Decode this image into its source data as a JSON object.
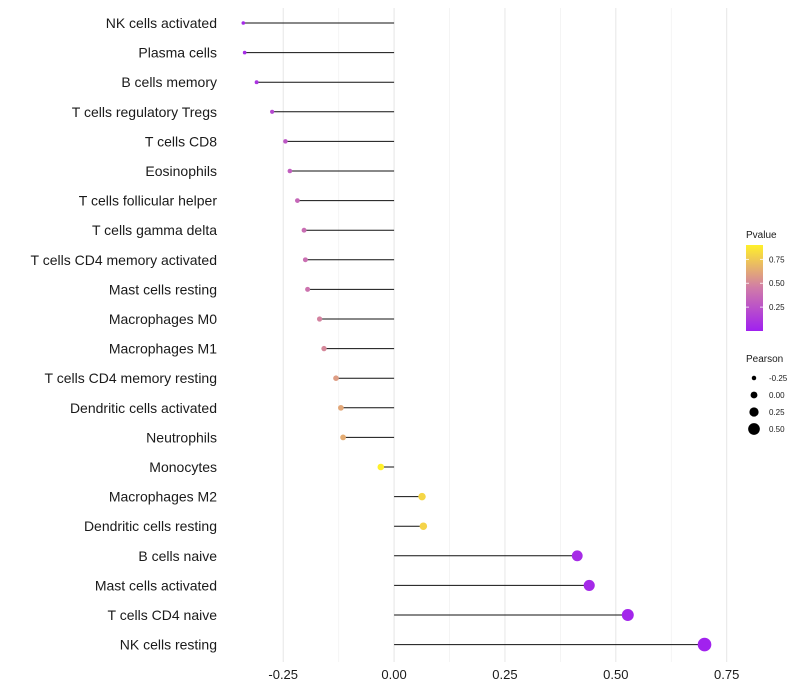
{
  "chart_data": {
    "type": "lollipop",
    "title": "",
    "xlabel": "",
    "ylabel": "",
    "xlim": [
      -0.37,
      0.78
    ],
    "x_ticks": [
      -0.25,
      0.0,
      0.25,
      0.5,
      0.75
    ],
    "x_tick_labels": [
      "-0.25",
      "0.00",
      "0.25",
      "0.50",
      "0.75"
    ],
    "grid": true,
    "points": [
      {
        "category": "NK cells activated",
        "pearson": -0.34,
        "pvalue": 0.05
      },
      {
        "category": "Plasma cells",
        "pearson": -0.337,
        "pvalue": 0.06
      },
      {
        "category": "B cells memory",
        "pearson": -0.31,
        "pvalue": 0.1
      },
      {
        "category": "T cells regulatory  Tregs ",
        "pearson": -0.275,
        "pvalue": 0.2
      },
      {
        "category": "T cells CD8",
        "pearson": -0.245,
        "pvalue": 0.27
      },
      {
        "category": "Eosinophils",
        "pearson": -0.235,
        "pvalue": 0.31
      },
      {
        "category": "T cells follicular helper",
        "pearson": -0.218,
        "pvalue": 0.35
      },
      {
        "category": "T cells gamma delta",
        "pearson": -0.203,
        "pvalue": 0.38
      },
      {
        "category": "T cells CD4 memory activated",
        "pearson": -0.2,
        "pvalue": 0.39
      },
      {
        "category": "Mast cells resting",
        "pearson": -0.195,
        "pvalue": 0.41
      },
      {
        "category": "Macrophages M0",
        "pearson": -0.168,
        "pvalue": 0.48
      },
      {
        "category": "Macrophages M1",
        "pearson": -0.158,
        "pvalue": 0.5
      },
      {
        "category": "T cells CD4 memory resting",
        "pearson": -0.131,
        "pvalue": 0.58
      },
      {
        "category": "Dendritic cells activated",
        "pearson": -0.12,
        "pvalue": 0.62
      },
      {
        "category": "Neutrophils",
        "pearson": -0.115,
        "pvalue": 0.64
      },
      {
        "category": "Monocytes",
        "pearson": -0.03,
        "pvalue": 0.9
      },
      {
        "category": "Macrophages M2",
        "pearson": 0.063,
        "pvalue": 0.8
      },
      {
        "category": "Dendritic cells resting",
        "pearson": 0.066,
        "pvalue": 0.79
      },
      {
        "category": "B cells naive",
        "pearson": 0.413,
        "pvalue": 0.06
      },
      {
        "category": "Mast cells activated",
        "pearson": 0.44,
        "pvalue": 0.05
      },
      {
        "category": "T cells CD4 naive",
        "pearson": 0.527,
        "pvalue": 0.03
      },
      {
        "category": "NK cells resting",
        "pearson": 0.7,
        "pvalue": 0.01
      }
    ],
    "legend_color": {
      "title": "Pvalue",
      "ticks": [
        0.25,
        0.5,
        0.75
      ],
      "tick_labels": [
        "0.25",
        "0.50",
        "0.75"
      ],
      "range": [
        0.0,
        0.9
      ],
      "low_color": "#a020f0",
      "mid_color": "#d07ba8",
      "high_color": "#fff02a",
      "position": "right"
    },
    "legend_size": {
      "title": "Pearson",
      "values": [
        -0.25,
        0.0,
        0.25,
        0.5
      ],
      "labels": [
        "-0.25",
        "0.00",
        "0.25",
        "0.50"
      ],
      "position": "right"
    }
  }
}
